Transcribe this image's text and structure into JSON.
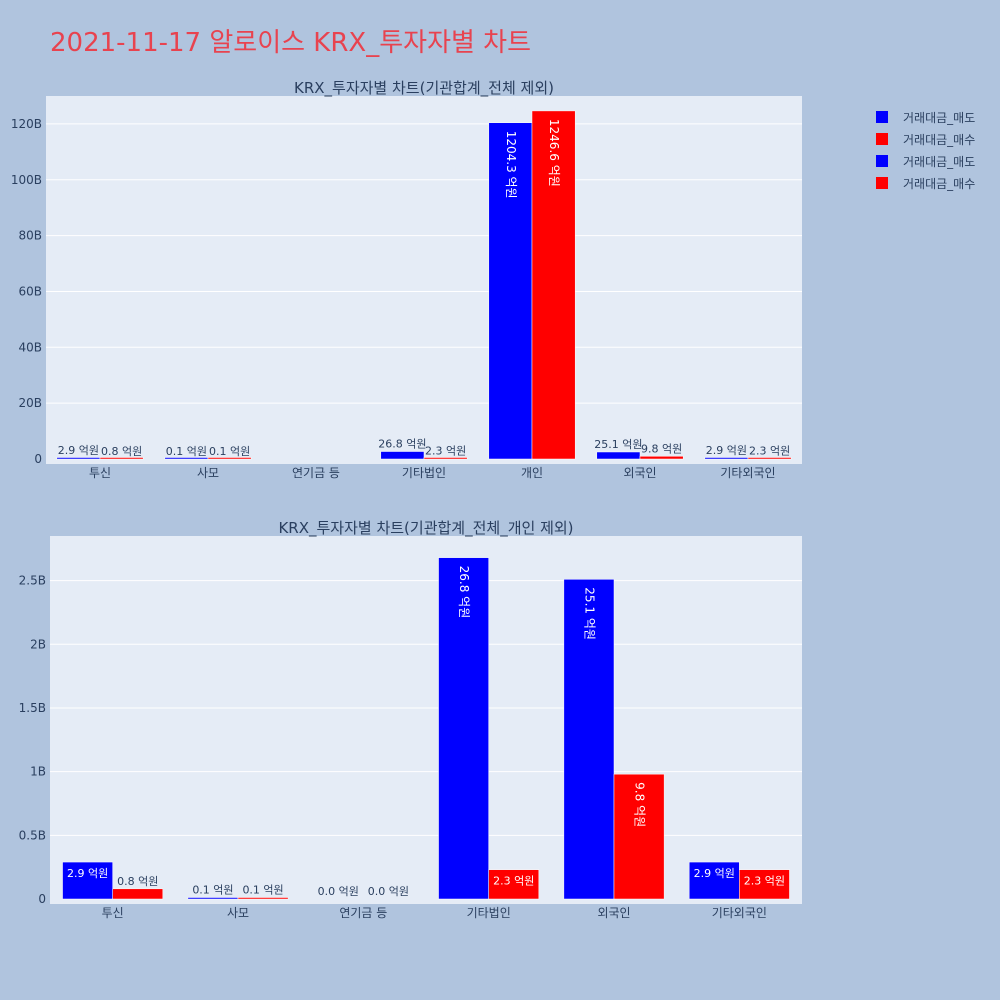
{
  "page": {
    "title": "2021-11-17 알로이스 KRX_투자자별 차트"
  },
  "colors": {
    "sell": "#0000ff",
    "buy": "#ff0000",
    "plot_bg": "#e5ecf6",
    "page_bg": "#b0c4de",
    "axis_text": "#2a3f5f"
  },
  "legend": {
    "placement": "top-right",
    "items": [
      {
        "label": "거래대금_매도",
        "color": "#0000ff"
      },
      {
        "label": "거래대금_매수",
        "color": "#ff0000"
      },
      {
        "label": "거래대금_매도",
        "color": "#0000ff"
      },
      {
        "label": "거래대금_매수",
        "color": "#ff0000"
      }
    ]
  },
  "chart_data": [
    {
      "type": "bar",
      "title": "KRX_투자자별 차트(기관합계_전체 제외)",
      "categories": [
        "투신",
        "사모",
        "연기금 등",
        "기타법인",
        "개인",
        "외국인",
        "기타외국인"
      ],
      "ylim": [
        0,
        130000000000
      ],
      "yticks": [
        0,
        20000000000,
        40000000000,
        60000000000,
        80000000000,
        100000000000,
        120000000000
      ],
      "ytick_labels": [
        "0",
        "20B",
        "40B",
        "60B",
        "80B",
        "100B",
        "120B"
      ],
      "grid": true,
      "series": [
        {
          "name": "거래대금_매도",
          "color": "#0000ff",
          "values": [
            290000000,
            10000000,
            0,
            2680000000,
            120430000000,
            2510000000,
            290000000
          ],
          "labels": [
            "2.9 억원",
            "0.1 억원",
            "",
            "26.8 억원",
            "1204.3 억원",
            "25.1 억원",
            "2.9 억원"
          ]
        },
        {
          "name": "거래대금_매수",
          "color": "#ff0000",
          "values": [
            80000000,
            10000000,
            0,
            230000000,
            124660000000,
            980000000,
            230000000
          ],
          "labels": [
            "0.8 억원",
            "0.1 억원",
            "",
            "2.3 억원",
            "1246.6 억원",
            "9.8 억원",
            "2.3 억원"
          ]
        }
      ]
    },
    {
      "type": "bar",
      "title": "KRX_투자자별 차트(기관합계_전체_개인 제외)",
      "categories": [
        "투신",
        "사모",
        "연기금 등",
        "기타법인",
        "외국인",
        "기타외국인"
      ],
      "ylim": [
        0,
        2850000000
      ],
      "yticks": [
        0,
        500000000,
        1000000000,
        1500000000,
        2000000000,
        2500000000
      ],
      "ytick_labels": [
        "0",
        "0.5B",
        "1B",
        "1.5B",
        "2B",
        "2.5B"
      ],
      "grid": true,
      "series": [
        {
          "name": "거래대금_매도",
          "color": "#0000ff",
          "values": [
            290000000,
            10000000,
            0,
            2680000000,
            2510000000,
            290000000
          ],
          "labels": [
            "2.9 억원",
            "0.1 억원",
            "0.0 억원",
            "26.8 억원",
            "25.1 억원",
            "2.9 억원"
          ]
        },
        {
          "name": "거래대금_매수",
          "color": "#ff0000",
          "values": [
            80000000,
            10000000,
            0,
            230000000,
            980000000,
            230000000
          ],
          "labels": [
            "0.8 억원",
            "0.1 억원",
            "0.0 억원",
            "2.3 억원",
            "9.8 억원",
            "2.3 억원"
          ]
        }
      ]
    }
  ]
}
